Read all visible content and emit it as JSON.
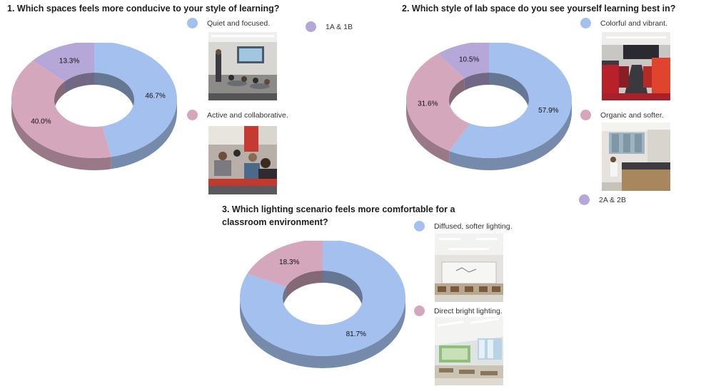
{
  "colors": {
    "blue": "#a4c0ee",
    "pink": "#d5a7bd",
    "purple": "#b5a7d7"
  },
  "chart_data": [
    {
      "type": "pie",
      "title": "1. Which spaces feels more conducive to your style of learning?",
      "categories": [
        "Quiet and focused.",
        "Active and collaborative.",
        "1A & 1B"
      ],
      "values": [
        46.7,
        40.0,
        13.3
      ],
      "labels": [
        "46.7%",
        "40.0%",
        "13.3%"
      ],
      "colors": [
        "#a4c0ee",
        "#d5a7bd",
        "#b5a7d7"
      ]
    },
    {
      "type": "pie",
      "title": "2. Which style of lab space do you see yourself learning best in?",
      "categories": [
        "Colorful and vibrant.",
        "Organic and softer.",
        "2A & 2B"
      ],
      "values": [
        57.9,
        31.6,
        10.5
      ],
      "labels": [
        "57.9%",
        "31.6%",
        "10.5%"
      ],
      "colors": [
        "#a4c0ee",
        "#d5a7bd",
        "#b5a7d7"
      ]
    },
    {
      "type": "pie",
      "title": "3. Which lighting scenario feels more comfortable for a classroom environment?",
      "categories": [
        "Diffused, softer lighting.",
        "Direct bright lighting."
      ],
      "values": [
        81.7,
        18.3
      ],
      "labels": [
        "81.7%",
        "18.3%"
      ],
      "colors": [
        "#a4c0ee",
        "#d5a7bd"
      ]
    }
  ],
  "q1": {
    "title": "1. Which spaces feels more conducive to your style of learning?",
    "legend": [
      "Quiet and focused.",
      "Active and collaborative.",
      "1A & 1B"
    ]
  },
  "q2": {
    "title": "2. Which style of lab space do you see yourself learning best in?",
    "legend": [
      "Colorful and vibrant.",
      "Organic and softer.",
      "2A & 2B"
    ]
  },
  "q3": {
    "title_line1": "3. Which lighting scenario feels more comfortable for a",
    "title_line2": "classroom environment?",
    "legend": [
      "Diffused, softer lighting.",
      "Direct bright lighting."
    ]
  }
}
